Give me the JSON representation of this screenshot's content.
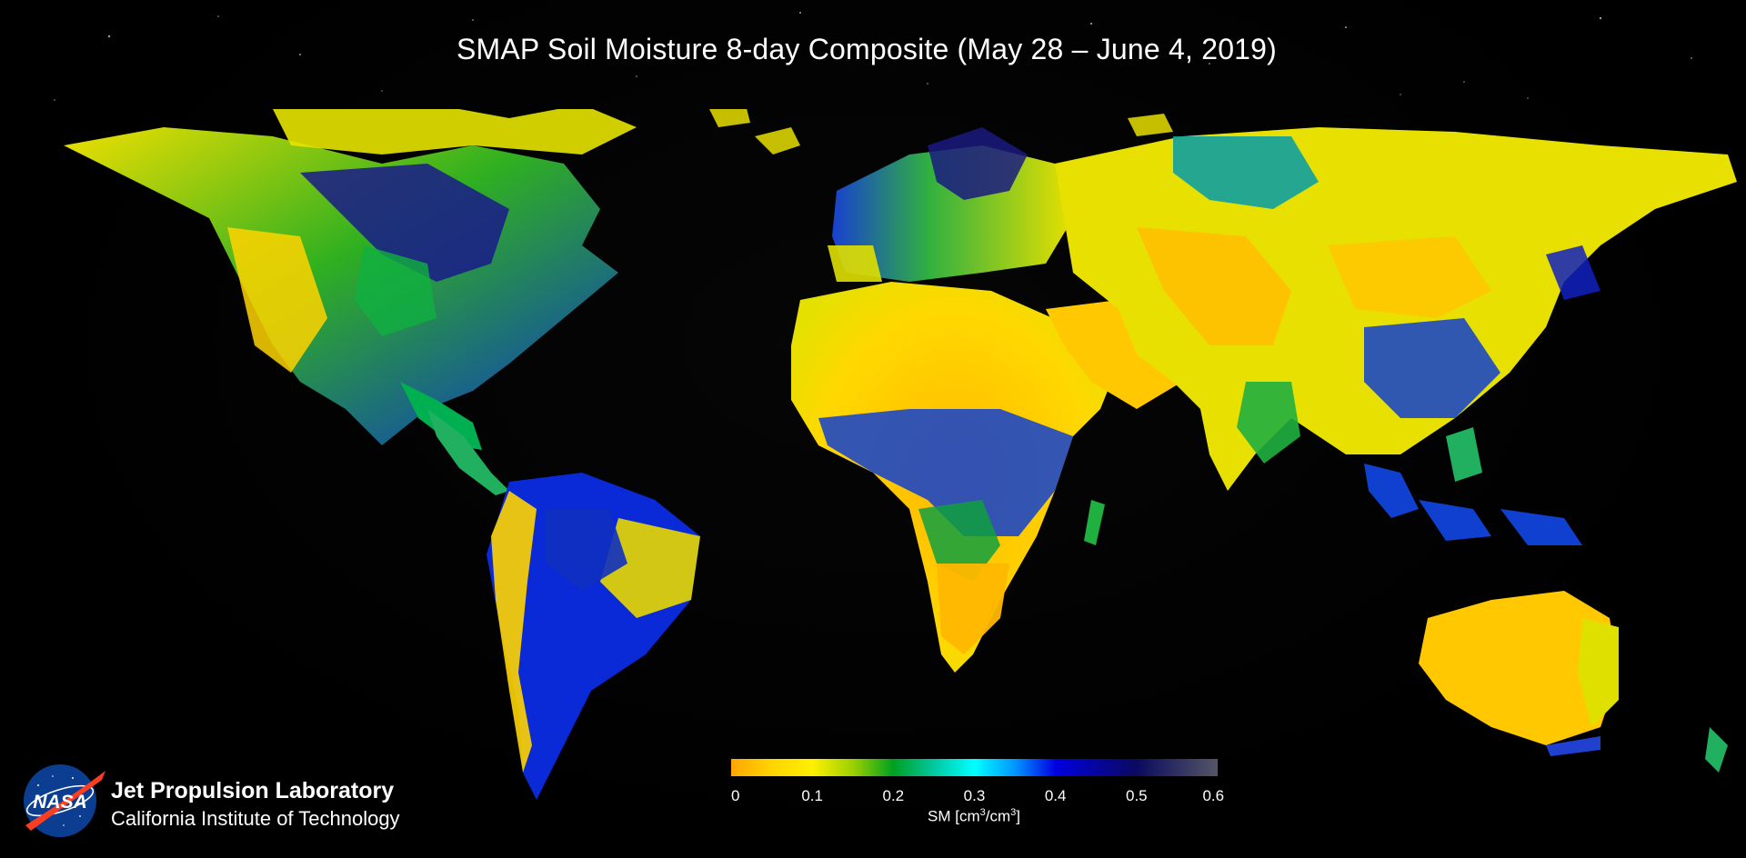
{
  "title": "SMAP Soil Moisture 8-day Composite (May 28 – June 4, 2019)",
  "colorbar": {
    "label_main": "SM [cm",
    "label_sup1": "3",
    "label_mid": "/cm",
    "label_sup2": "3",
    "label_end": "]",
    "ticks": [
      "0",
      "0.1",
      "0.2",
      "0.3",
      "0.4",
      "0.5",
      "0.6"
    ],
    "range": [
      0,
      0.6
    ],
    "stops": [
      {
        "value": 0.0,
        "color": "#ffa600"
      },
      {
        "value": 0.05,
        "color": "#ffd400"
      },
      {
        "value": 0.1,
        "color": "#fff000"
      },
      {
        "value": 0.15,
        "color": "#9cd000"
      },
      {
        "value": 0.2,
        "color": "#00a020"
      },
      {
        "value": 0.25,
        "color": "#00c8a0"
      },
      {
        "value": 0.3,
        "color": "#00ffff"
      },
      {
        "value": 0.35,
        "color": "#0096ff"
      },
      {
        "value": 0.4,
        "color": "#0000e0"
      },
      {
        "value": 0.5,
        "color": "#0a0a60"
      },
      {
        "value": 0.6,
        "color": "#555566"
      }
    ]
  },
  "logo": {
    "agency": "NASA",
    "lab": "Jet Propulsion Laboratory",
    "institute": "California Institute of Technology"
  },
  "colors": {
    "background": "#000000",
    "dry": "#ffd000",
    "moist": "#00a020",
    "wet": "#0000d0"
  }
}
